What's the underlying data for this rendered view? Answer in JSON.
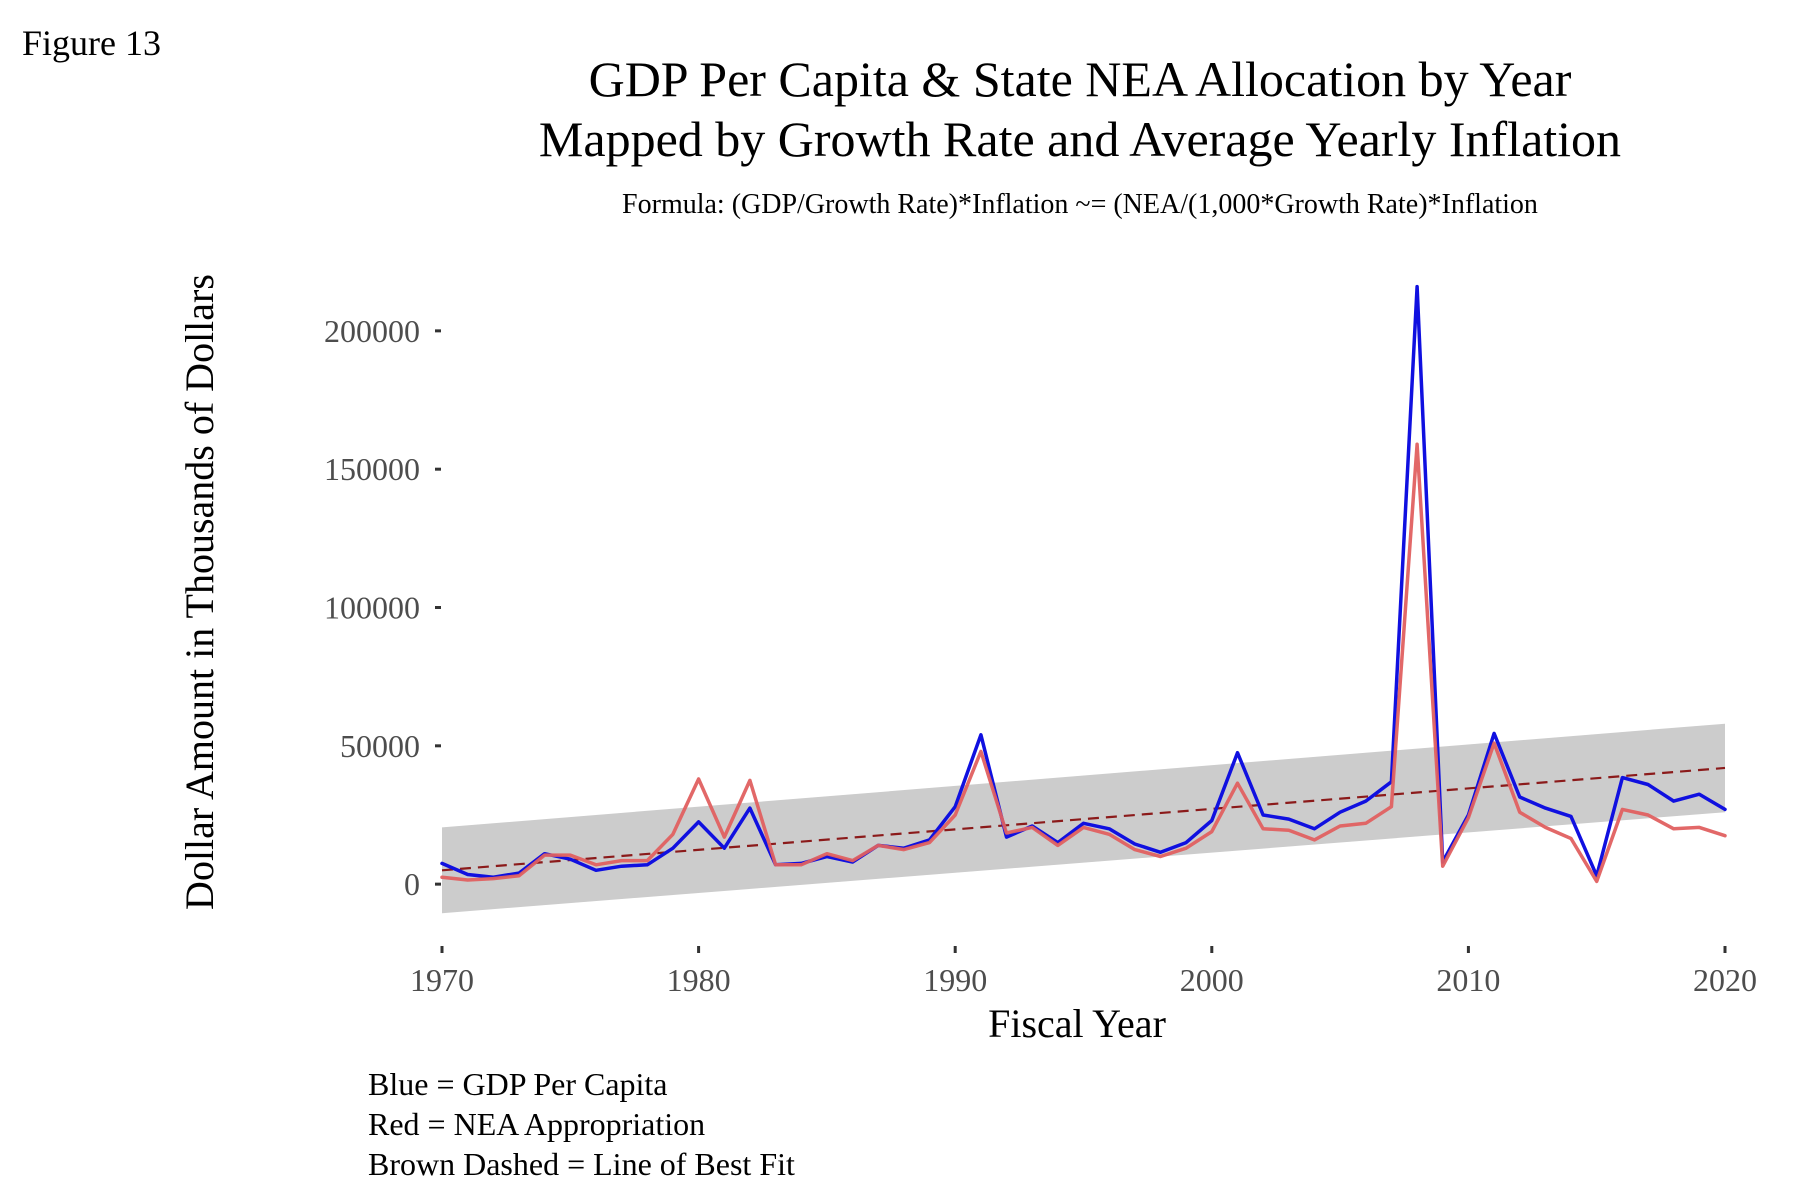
{
  "figure_label": "Figure 13",
  "caption": [
    "Blue = GDP Per Capita",
    "Red = NEA Appropriation",
    "Brown Dashed = Line of Best Fit"
  ],
  "chart_data": {
    "type": "line",
    "title_lines": [
      "GDP Per Capita & State NEA Allocation by Year",
      "Mapped by Growth Rate and Average Yearly Inflation"
    ],
    "subtitle": "Formula: (GDP/Growth Rate)*Inflation ~= (NEA/(1,000*Growth Rate)*Inflation",
    "xlabel": "Fiscal Year",
    "ylabel": "Dollar Amount in Thousands of Dollars",
    "xlim": [
      1970,
      2020
    ],
    "ylim": [
      -22000,
      222000
    ],
    "x_ticks": [
      1970,
      1980,
      1990,
      2000,
      2010,
      2020
    ],
    "y_ticks": [
      0,
      50000,
      100000,
      150000,
      200000
    ],
    "grid": false,
    "legend": "none",
    "x": [
      1970,
      1971,
      1972,
      1973,
      1974,
      1975,
      1976,
      1977,
      1978,
      1979,
      1980,
      1981,
      1982,
      1983,
      1984,
      1985,
      1986,
      1987,
      1988,
      1989,
      1990,
      1991,
      1992,
      1993,
      1994,
      1995,
      1996,
      1997,
      1998,
      1999,
      2000,
      2001,
      2002,
      2003,
      2004,
      2005,
      2006,
      2007,
      2008,
      2009,
      2010,
      2011,
      2012,
      2013,
      2014,
      2015,
      2016,
      2017,
      2018,
      2019,
      2020
    ],
    "series": [
      {
        "color": "#1010e0",
        "values": [
          7500,
          3500,
          2500,
          4000,
          11000,
          9000,
          5000,
          6500,
          7000,
          13000,
          22500,
          13000,
          27500,
          7000,
          7500,
          10000,
          8000,
          14000,
          13000,
          16000,
          28000,
          54000,
          17000,
          21000,
          15000,
          22000,
          20000,
          14500,
          11500,
          15000,
          23000,
          47500,
          25000,
          23500,
          20000,
          26000,
          30000,
          37000,
          216000,
          8000,
          25000,
          54500,
          31500,
          27500,
          24500,
          3000,
          38500,
          36000,
          30000,
          32500,
          27000
        ]
      },
      {
        "color": "#e06060",
        "values": [
          2500,
          1500,
          2000,
          3000,
          10500,
          10500,
          7000,
          8500,
          8500,
          18000,
          38000,
          17000,
          37500,
          7000,
          7000,
          11000,
          8500,
          14000,
          12500,
          15000,
          25000,
          48000,
          18500,
          20500,
          14000,
          20500,
          18000,
          12500,
          10000,
          13000,
          19000,
          36500,
          20000,
          19500,
          16000,
          21000,
          22000,
          28000,
          159000,
          6500,
          24000,
          51000,
          26000,
          20500,
          16500,
          1000,
          27000,
          25000,
          20000,
          20500,
          17500
        ]
      }
    ],
    "fit": {
      "color": "#8b1a1a",
      "band_color": "#cccccc",
      "x": [
        1970,
        2020
      ],
      "y": [
        5000,
        42000
      ],
      "band_lower": [
        -10500,
        26000
      ],
      "band_upper": [
        20500,
        58000
      ]
    }
  }
}
